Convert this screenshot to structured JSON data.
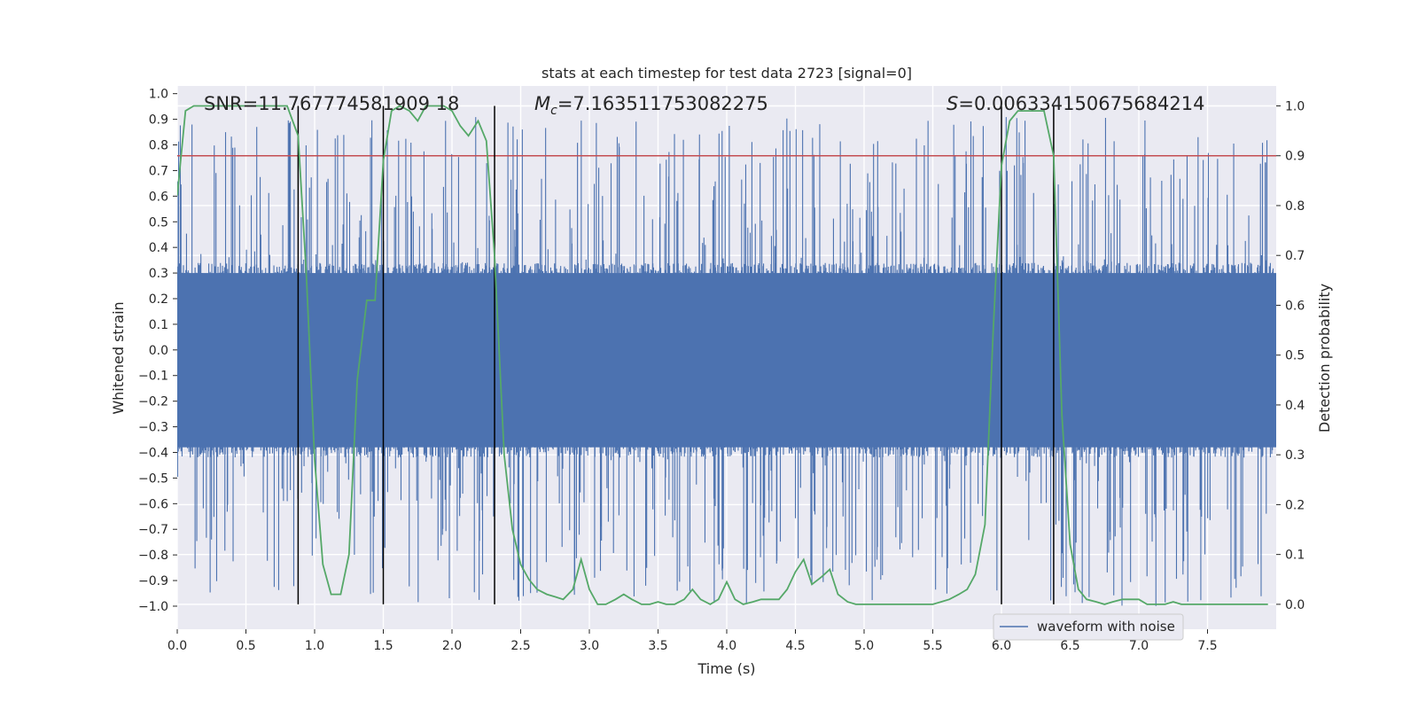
{
  "chart_data": {
    "type": "line",
    "title": "stats at each timestep for test data 2723 [signal=0]",
    "xlabel": "Time (s)",
    "ylabel_left": "Whitened strain",
    "ylabel_right": "Detection probability",
    "xlim": [
      0.0,
      8.0
    ],
    "ylim_left": [
      -1.09,
      1.03
    ],
    "ylim_right": [
      -0.05,
      1.04
    ],
    "x_ticks": [
      0.0,
      0.5,
      1.0,
      1.5,
      2.0,
      2.5,
      3.0,
      3.5,
      4.0,
      4.5,
      5.0,
      5.5,
      6.0,
      6.5,
      7.0,
      7.5
    ],
    "x_tick_labels": [
      "0.0",
      "0.5",
      "1.0",
      "1.5",
      "2.0",
      "2.5",
      "3.0",
      "3.5",
      "4.0",
      "4.5",
      "5.0",
      "5.5",
      "6.0",
      "6.5",
      "7.0",
      "7.5"
    ],
    "left_ticks": [
      1.0,
      0.9,
      0.8,
      0.7,
      0.6,
      0.5,
      0.4,
      0.3,
      0.2,
      0.1,
      0.0,
      -0.1,
      -0.2,
      -0.3,
      -0.4,
      -0.5,
      -0.6,
      -0.7,
      -0.8,
      -0.9,
      -1.0
    ],
    "left_tick_labels": [
      "1.0",
      "0.9",
      "0.8",
      "0.7",
      "0.6",
      "0.5",
      "0.4",
      "0.3",
      "0.2",
      "0.1",
      "0.0",
      "−0.1",
      "−0.2",
      "−0.3",
      "−0.4",
      "−0.5",
      "−0.6",
      "−0.7",
      "−0.8",
      "−0.9",
      "−1.0"
    ],
    "right_ticks": [
      1.0,
      0.9,
      0.8,
      0.7,
      0.6,
      0.5,
      0.4,
      0.3,
      0.2,
      0.1,
      0.0
    ],
    "right_tick_labels": [
      "1.0",
      "0.9",
      "0.8",
      "0.7",
      "0.6",
      "0.5",
      "0.4",
      "0.3",
      "0.2",
      "0.1",
      "0.0"
    ],
    "grid": true,
    "legend": {
      "position": "lower-right",
      "entries": [
        "waveform with noise"
      ]
    },
    "series": [
      {
        "name": "waveform with noise",
        "axis": "left",
        "style": "dense-noise",
        "color": "#4c72b0",
        "typical_range": [
          -0.42,
          0.34
        ],
        "approx_extremes": [
          -1.0,
          0.91
        ],
        "duration_s": 7.98
      },
      {
        "axis": "right",
        "color": "#55a868",
        "x": [
          0.0,
          0.06,
          0.12,
          0.25,
          0.5,
          0.8,
          0.88,
          0.94,
          1.0,
          1.06,
          1.12,
          1.19,
          1.25,
          1.31,
          1.38,
          1.44,
          1.5,
          1.56,
          1.62,
          1.69,
          1.75,
          1.81,
          1.88,
          1.94,
          2.0,
          2.06,
          2.12,
          2.19,
          2.25,
          2.31,
          2.38,
          2.44,
          2.5,
          2.56,
          2.62,
          2.69,
          2.75,
          2.81,
          2.88,
          2.94,
          3.0,
          3.06,
          3.12,
          3.19,
          3.25,
          3.31,
          3.38,
          3.44,
          3.5,
          3.56,
          3.62,
          3.69,
          3.75,
          3.81,
          3.88,
          3.94,
          4.0,
          4.06,
          4.12,
          4.19,
          4.25,
          4.31,
          4.38,
          4.44,
          4.5,
          4.56,
          4.62,
          4.69,
          4.75,
          4.81,
          4.88,
          4.94,
          5.0,
          5.25,
          5.5,
          5.56,
          5.62,
          5.69,
          5.75,
          5.81,
          5.88,
          5.94,
          6.0,
          6.06,
          6.12,
          6.19,
          6.25,
          6.31,
          6.38,
          6.44,
          6.5,
          6.56,
          6.62,
          6.69,
          6.75,
          6.81,
          6.88,
          6.94,
          7.0,
          7.06,
          7.12,
          7.19,
          7.25,
          7.31,
          7.38,
          7.44,
          7.5,
          7.56,
          7.62,
          7.69,
          7.75,
          7.81,
          7.88,
          7.94
        ],
        "y": [
          0.82,
          0.99,
          1.0,
          1.0,
          1.0,
          1.0,
          0.94,
          0.66,
          0.29,
          0.08,
          0.02,
          0.02,
          0.1,
          0.45,
          0.61,
          0.61,
          0.89,
          0.99,
          1.0,
          0.99,
          0.97,
          1.0,
          1.0,
          1.0,
          0.99,
          0.96,
          0.94,
          0.97,
          0.93,
          0.7,
          0.3,
          0.15,
          0.08,
          0.05,
          0.03,
          0.02,
          0.015,
          0.01,
          0.03,
          0.09,
          0.03,
          0.0,
          0.0,
          0.01,
          0.02,
          0.01,
          0.0,
          0.0,
          0.005,
          0.0,
          0.0,
          0.01,
          0.03,
          0.01,
          0.0,
          0.01,
          0.045,
          0.01,
          0.0,
          0.005,
          0.01,
          0.01,
          0.01,
          0.03,
          0.065,
          0.09,
          0.04,
          0.055,
          0.07,
          0.02,
          0.005,
          0.0,
          0.0,
          0.0,
          0.0,
          0.005,
          0.01,
          0.02,
          0.03,
          0.06,
          0.16,
          0.55,
          0.88,
          0.97,
          0.99,
          0.99,
          0.99,
          0.99,
          0.9,
          0.38,
          0.12,
          0.03,
          0.01,
          0.005,
          0.0,
          0.005,
          0.01,
          0.01,
          0.01,
          0.0,
          0.0,
          0.0,
          0.005,
          0.0,
          0.0,
          0.0,
          0.0,
          0.0,
          0.0,
          0.0,
          0.0,
          0.0,
          0.0,
          0.0
        ]
      }
    ],
    "threshold_line": {
      "axis": "right",
      "value": 0.9,
      "color": "#c44e52"
    },
    "vertical_lines_x": [
      0.88,
      1.5,
      2.31,
      6.0,
      6.38
    ],
    "vertical_line_color": "#000000",
    "annotations": {
      "snr": "SNR=11.767774581909 18",
      "mc_symbol": "M",
      "mc_subscript": "c",
      "mc_value": "=7.163511753082275",
      "s_symbol": "S",
      "s_value": "=0.006334150675684214"
    }
  }
}
